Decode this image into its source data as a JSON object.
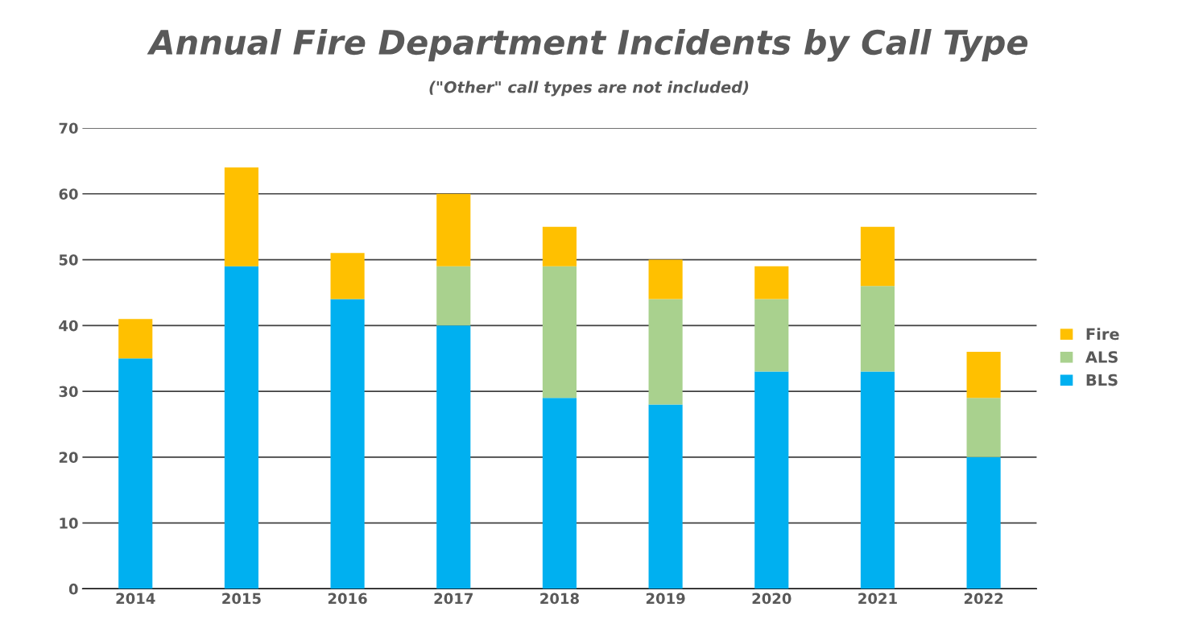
{
  "chart_data": {
    "type": "bar",
    "title": "Annual Fire Department Incidents by Call Type",
    "subtitle": "(\"Other\" call types are not included)",
    "categories": [
      "2014",
      "2015",
      "2016",
      "2017",
      "2018",
      "2019",
      "2020",
      "2021",
      "2022"
    ],
    "stacked": true,
    "series": [
      {
        "name": "BLS",
        "color": "#00b0f0",
        "values": [
          35,
          49,
          44,
          40,
          29,
          28,
          33,
          33,
          20
        ]
      },
      {
        "name": "ALS",
        "color": "#a9d18e",
        "values": [
          0,
          0,
          0,
          9,
          20,
          16,
          11,
          13,
          9
        ]
      },
      {
        "name": "Fire",
        "color": "#ffc000",
        "values": [
          6,
          15,
          7,
          11,
          6,
          6,
          5,
          9,
          7
        ]
      }
    ],
    "ylim": [
      0,
      70
    ],
    "yticks": [
      0,
      10,
      20,
      30,
      40,
      50,
      60,
      70
    ],
    "grid": "y",
    "legend": "right"
  }
}
